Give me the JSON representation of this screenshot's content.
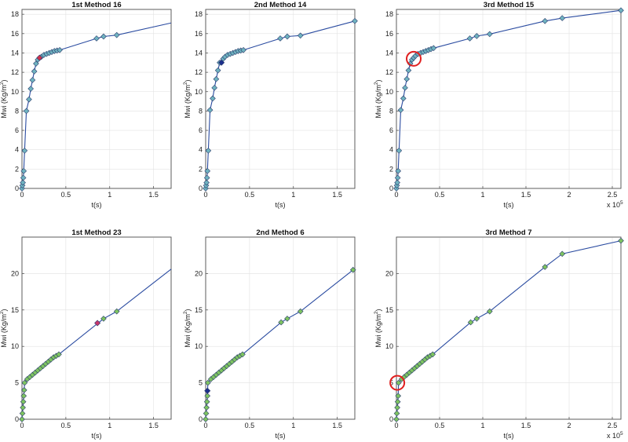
{
  "chart_data": [
    {
      "type": "line",
      "title": "1st Method 16",
      "xlabel": "t(s)",
      "ylabel_main": "Mwi (Kg/m",
      "ylabel_sup": "2",
      "ylabel_end": ")",
      "xlim": [
        0,
        1.7
      ],
      "ylim": [
        0,
        18.5
      ],
      "xticks": [
        0,
        0.5,
        1,
        1.5
      ],
      "xtick_labels": [
        "0",
        "0.5",
        "1",
        "1.5"
      ],
      "yticks": [
        0,
        2,
        4,
        6,
        8,
        10,
        12,
        14,
        16,
        18
      ],
      "ytick_labels": [
        "0",
        "2",
        "4",
        "6",
        "8",
        "10",
        "12",
        "14",
        "16",
        "18"
      ],
      "exponent_label": "",
      "grid": true,
      "line_color": "#2a4ba0",
      "marker_color": "#6fb3c0",
      "x": [
        0,
        0.005,
        0.01,
        0.015,
        0.02,
        0.03,
        0.05,
        0.08,
        0.1,
        0.12,
        0.14,
        0.16,
        0.18,
        0.22,
        0.25,
        0.28,
        0.31,
        0.34,
        0.37,
        0.4,
        0.43,
        0.85,
        0.93,
        1.08,
        1.7
      ],
      "y": [
        0,
        0.3,
        0.6,
        1.1,
        1.8,
        3.9,
        8.0,
        9.2,
        10.3,
        11.2,
        12.1,
        12.9,
        13.3,
        13.6,
        13.8,
        13.9,
        14.0,
        14.1,
        14.2,
        14.25,
        14.3,
        15.5,
        15.7,
        15.85,
        17.1
      ],
      "last_marker": false,
      "highlight": {
        "x": 0.2,
        "y": 13.5,
        "color": "#d0304a"
      },
      "circle": null
    },
    {
      "type": "line",
      "title": "2nd Method 14",
      "xlabel": "t(s)",
      "ylabel_main": "Mwi (Kg/m",
      "ylabel_sup": "2",
      "ylabel_end": ")",
      "xlim": [
        0,
        1.7
      ],
      "ylim": [
        0,
        18.5
      ],
      "xticks": [
        0,
        0.5,
        1,
        1.5
      ],
      "xtick_labels": [
        "0",
        "0.5",
        "1",
        "1.5"
      ],
      "yticks": [
        0,
        2,
        4,
        6,
        8,
        10,
        12,
        14,
        16,
        18
      ],
      "ytick_labels": [
        "0",
        "2",
        "4",
        "6",
        "8",
        "10",
        "12",
        "14",
        "16",
        "18"
      ],
      "exponent_label": "",
      "grid": true,
      "line_color": "#2a4ba0",
      "marker_color": "#6fb3c0",
      "x": [
        0,
        0.005,
        0.01,
        0.015,
        0.02,
        0.03,
        0.05,
        0.08,
        0.1,
        0.12,
        0.14,
        0.16,
        0.2,
        0.22,
        0.25,
        0.28,
        0.31,
        0.34,
        0.37,
        0.4,
        0.43,
        0.85,
        0.93,
        1.08,
        1.7
      ],
      "y": [
        0,
        0.3,
        0.6,
        1.1,
        1.8,
        3.9,
        8.1,
        9.3,
        10.4,
        11.3,
        12.2,
        13.0,
        13.4,
        13.6,
        13.8,
        13.9,
        14.0,
        14.1,
        14.2,
        14.25,
        14.3,
        15.5,
        15.7,
        15.8,
        17.3
      ],
      "last_marker": true,
      "highlight": {
        "x": 0.18,
        "y": 13.0,
        "color": "#1c2f8c"
      },
      "circle": null
    },
    {
      "type": "line",
      "title": "3rd Method 15",
      "xlabel": "t(s)",
      "ylabel_main": "Mwi (Kg/m",
      "ylabel_sup": "2",
      "ylabel_end": ")",
      "xlim": [
        0,
        2.6
      ],
      "ylim": [
        0,
        18.5
      ],
      "xticks": [
        0,
        0.5,
        1,
        1.5,
        2,
        2.5
      ],
      "xtick_labels": [
        "0",
        "0.5",
        "1",
        "1.5",
        "2",
        "2.5"
      ],
      "yticks": [
        0,
        2,
        4,
        6,
        8,
        10,
        12,
        14,
        16,
        18
      ],
      "ytick_labels": [
        "0",
        "2",
        "4",
        "6",
        "8",
        "10",
        "12",
        "14",
        "16",
        "18"
      ],
      "exponent_label": "x 10",
      "exponent_sup": "5",
      "grid": true,
      "line_color": "#2a4ba0",
      "marker_color": "#6fb3c0",
      "x": [
        0,
        0.005,
        0.01,
        0.015,
        0.02,
        0.03,
        0.05,
        0.08,
        0.1,
        0.12,
        0.14,
        0.16,
        0.18,
        0.2,
        0.22,
        0.25,
        0.28,
        0.31,
        0.34,
        0.37,
        0.4,
        0.43,
        0.85,
        0.93,
        1.08,
        1.72,
        1.92,
        2.6
      ],
      "y": [
        0,
        0.3,
        0.6,
        1.1,
        1.8,
        3.9,
        8.1,
        9.3,
        10.4,
        11.3,
        12.2,
        12.9,
        13.3,
        13.5,
        13.7,
        13.9,
        14.0,
        14.1,
        14.2,
        14.3,
        14.4,
        14.5,
        15.5,
        15.75,
        15.95,
        17.3,
        17.6,
        18.4
      ],
      "last_marker": true,
      "highlight": null,
      "circle": {
        "x": 0.2,
        "y": 13.4
      }
    },
    {
      "type": "line",
      "title": "1st Method 23",
      "xlabel": "t(s)",
      "ylabel_main": "Mwi (Kg/m",
      "ylabel_sup": "2",
      "ylabel_end": ")",
      "xlim": [
        0,
        1.7
      ],
      "ylim": [
        0,
        25
      ],
      "xticks": [
        0,
        0.5,
        1,
        1.5
      ],
      "xtick_labels": [
        "0",
        "0.5",
        "1",
        "1.5"
      ],
      "yticks": [
        0,
        5,
        10,
        15,
        20
      ],
      "ytick_labels": [
        "0",
        "5",
        "10",
        "15",
        "20"
      ],
      "exponent_label": "",
      "grid": true,
      "line_color": "#2a4ba0",
      "marker_color": "#7ec460",
      "x": [
        0,
        0.005,
        0.01,
        0.015,
        0.02,
        0.025,
        0.03,
        0.06,
        0.09,
        0.12,
        0.15,
        0.18,
        0.21,
        0.24,
        0.27,
        0.3,
        0.33,
        0.36,
        0.39,
        0.42,
        0.93,
        1.08,
        1.7
      ],
      "y": [
        0,
        0.8,
        1.6,
        2.4,
        3.2,
        4.0,
        5.0,
        5.5,
        5.8,
        6.1,
        6.4,
        6.7,
        7.0,
        7.3,
        7.6,
        7.9,
        8.2,
        8.5,
        8.7,
        8.9,
        13.8,
        14.8,
        20.6
      ],
      "last_marker": false,
      "highlight": {
        "x": 0.86,
        "y": 13.2,
        "color": "#c8366c"
      },
      "circle": null
    },
    {
      "type": "line",
      "title": "2nd Method 6",
      "xlabel": "t(s)",
      "ylabel_main": "Mwi (Kg/m",
      "ylabel_sup": "2",
      "ylabel_end": ")",
      "xlim": [
        0,
        1.7
      ],
      "ylim": [
        0,
        25
      ],
      "xticks": [
        0,
        0.5,
        1,
        1.5
      ],
      "xtick_labels": [
        "0",
        "0.5",
        "1",
        "1.5"
      ],
      "yticks": [
        0,
        5,
        10,
        15,
        20
      ],
      "ytick_labels": [
        "0",
        "5",
        "10",
        "15",
        "20"
      ],
      "exponent_label": "",
      "grid": true,
      "line_color": "#2a4ba0",
      "marker_color": "#7ec460",
      "x": [
        0,
        0.005,
        0.01,
        0.015,
        0.02,
        0.025,
        0.06,
        0.09,
        0.12,
        0.15,
        0.18,
        0.21,
        0.24,
        0.27,
        0.3,
        0.33,
        0.36,
        0.39,
        0.42,
        0.86,
        0.93,
        1.08,
        1.68
      ],
      "y": [
        0,
        0.8,
        1.6,
        2.4,
        3.2,
        5.0,
        5.5,
        5.8,
        6.1,
        6.4,
        6.7,
        7.0,
        7.3,
        7.6,
        7.9,
        8.2,
        8.5,
        8.7,
        8.9,
        13.3,
        13.8,
        14.8,
        20.5
      ],
      "last_marker": true,
      "highlight": {
        "x": 0.02,
        "y": 3.9,
        "color": "#1c2f8c"
      },
      "circle": null
    },
    {
      "type": "line",
      "title": "3rd Method 7",
      "xlabel": "t(s)",
      "ylabel_main": "Mwi (Kg/m",
      "ylabel_sup": "2",
      "ylabel_end": ")",
      "xlim": [
        0,
        2.6
      ],
      "ylim": [
        0,
        25
      ],
      "xticks": [
        0,
        0.5,
        1,
        1.5,
        2,
        2.5
      ],
      "xtick_labels": [
        "0",
        "0.5",
        "1",
        "1.5",
        "2",
        "2.5"
      ],
      "yticks": [
        0,
        5,
        10,
        15,
        20
      ],
      "ytick_labels": [
        "0",
        "5",
        "10",
        "15",
        "20"
      ],
      "exponent_label": "x 10",
      "exponent_sup": "5",
      "grid": true,
      "line_color": "#2a4ba0",
      "marker_color": "#7ec460",
      "x": [
        0,
        0.005,
        0.01,
        0.015,
        0.02,
        0.025,
        0.06,
        0.09,
        0.12,
        0.15,
        0.18,
        0.21,
        0.24,
        0.27,
        0.3,
        0.33,
        0.36,
        0.39,
        0.42,
        0.86,
        0.93,
        1.08,
        1.72,
        1.92,
        2.6
      ],
      "y": [
        0,
        0.8,
        1.6,
        2.4,
        3.2,
        5.0,
        5.5,
        5.8,
        6.1,
        6.4,
        6.7,
        7.0,
        7.3,
        7.6,
        7.9,
        8.2,
        8.5,
        8.7,
        8.9,
        13.3,
        13.8,
        14.8,
        20.9,
        22.7,
        24.5
      ],
      "last_marker": true,
      "highlight": null,
      "circle": {
        "x": 0.01,
        "y": 5.0
      }
    }
  ]
}
